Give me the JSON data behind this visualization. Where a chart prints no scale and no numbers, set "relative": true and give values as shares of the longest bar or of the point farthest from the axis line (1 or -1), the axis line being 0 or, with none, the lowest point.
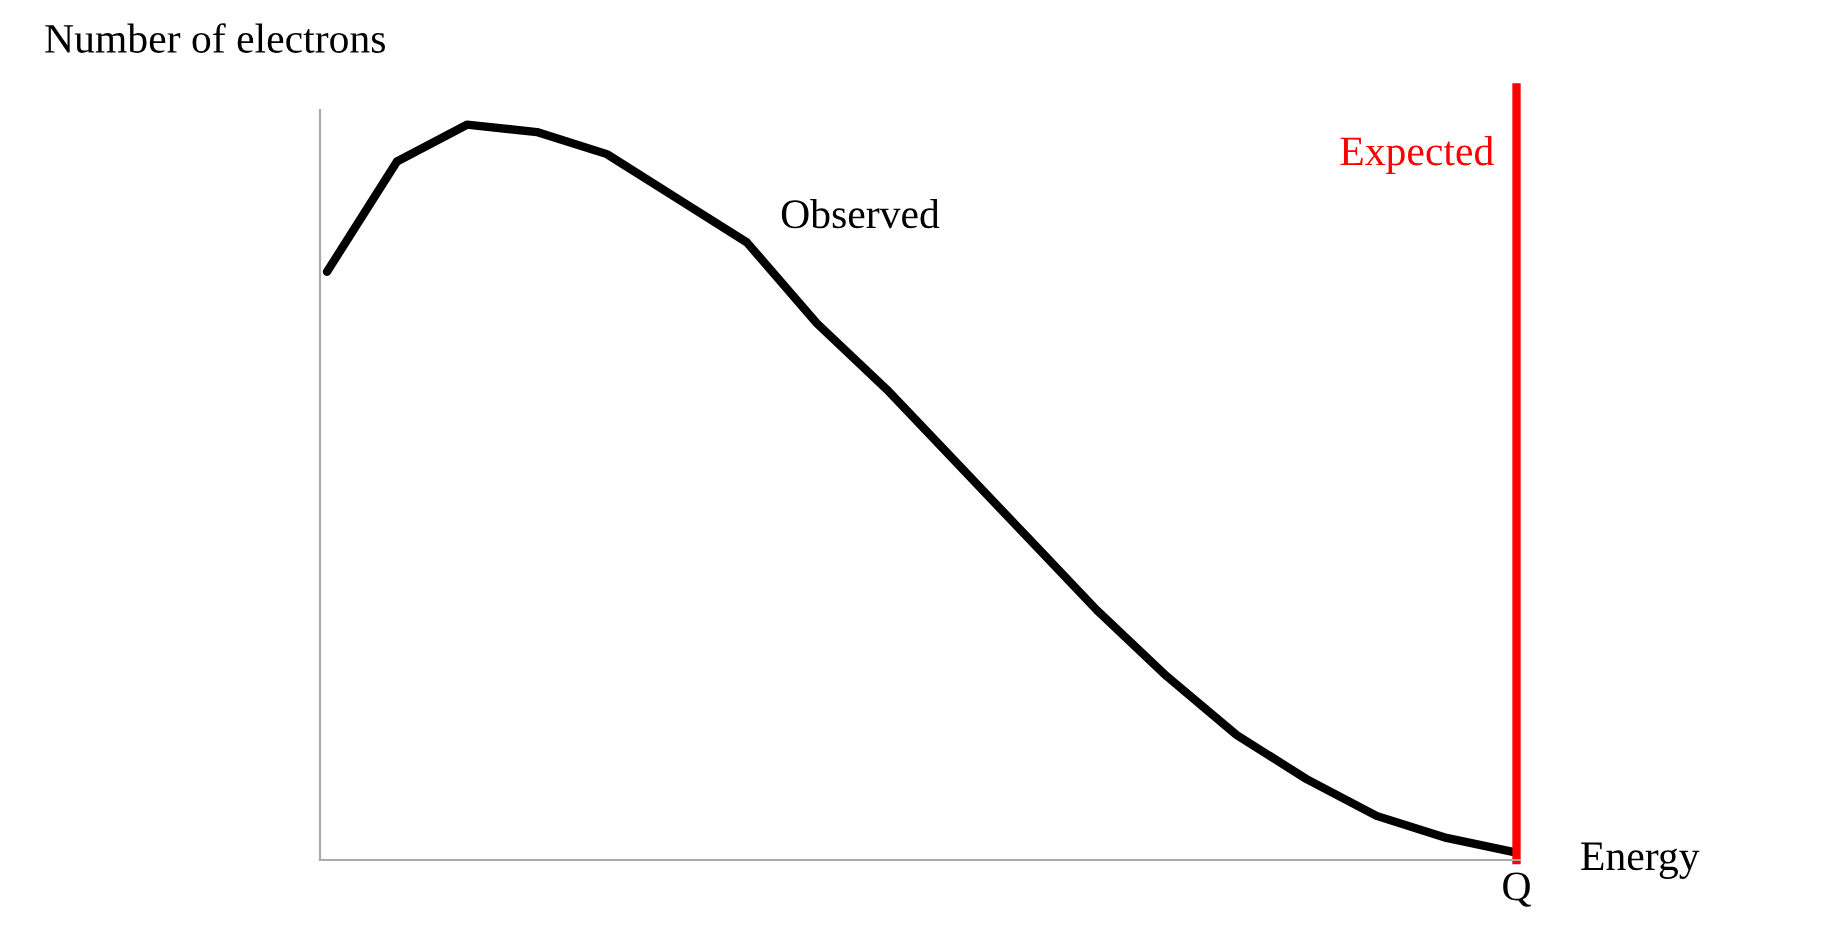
{
  "chart_data": {
    "type": "line",
    "relative": true,
    "xlabel": "Energy",
    "ylabel": "Number of electrons",
    "categories": [
      null,
      null,
      null,
      null,
      null,
      null,
      null,
      null,
      null,
      null,
      null,
      null,
      null,
      null,
      null,
      null,
      null,
      null
    ],
    "series": [
      {
        "name": "Observed",
        "color": "#000000",
        "values": [
          0.8,
          0.95,
          1.0,
          0.99,
          0.96,
          0.9,
          0.84,
          0.73,
          0.64,
          0.54,
          0.44,
          0.34,
          0.25,
          0.17,
          0.11,
          0.06,
          0.03,
          0.01
        ]
      }
    ],
    "ref_lines": [
      {
        "axis": "x",
        "value": "Q",
        "label": "Expected",
        "color": "#ff0000"
      }
    ],
    "grid": false,
    "legend": false,
    "marker": "none",
    "line_style": "solid"
  }
}
